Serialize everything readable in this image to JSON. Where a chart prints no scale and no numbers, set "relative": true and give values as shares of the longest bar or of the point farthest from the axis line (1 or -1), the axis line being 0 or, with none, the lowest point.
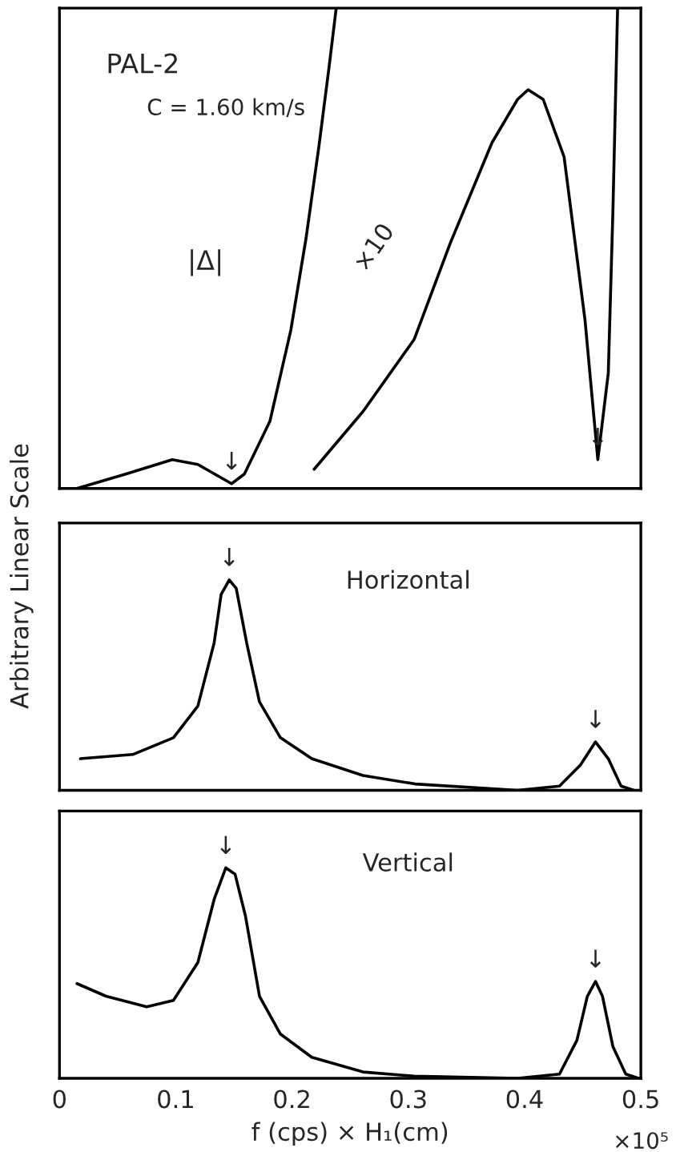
{
  "chart_data": [
    {
      "type": "line",
      "relative": true,
      "xlim": [
        0,
        0.5
      ],
      "xticks": [
        0,
        0.1,
        0.2,
        0.3,
        0.4,
        0.5
      ],
      "tick_labels": false,
      "grid": false,
      "legend": false,
      "x": [
        0.015,
        0.057,
        0.097,
        0.119,
        0.148,
        0.159,
        0.181,
        0.199,
        0.212,
        0.223,
        0.232,
        0.238
      ],
      "series": [
        {
          "color": "#000000",
          "values": [
            0.0,
            0.03,
            0.06,
            0.05,
            0.01,
            0.03,
            0.14,
            0.33,
            0.52,
            0.71,
            0.88,
            1.0
          ]
        },
        {
          "color": "#000000",
          "x": [
            0.219,
            0.261,
            0.305,
            0.336,
            0.372,
            0.394,
            0.403,
            0.416,
            0.434,
            0.452,
            0.463,
            0.472,
            0.476,
            0.48
          ],
          "values": [
            0.04,
            0.16,
            0.31,
            0.51,
            0.72,
            0.81,
            0.83,
            0.81,
            0.69,
            0.35,
            0.06,
            0.24,
            0.58,
            1.0
          ]
        }
      ],
      "annotations": [
        "PAL-2",
        "C = 1.60 km/s",
        "|Δ|",
        "×10",
        {
          "text": "↓",
          "x": 0.148,
          "y": 0.01
        },
        {
          "text": "↓",
          "x": 0.463,
          "y": 0.06
        }
      ]
    },
    {
      "type": "line",
      "relative": true,
      "xlim": [
        0,
        0.5
      ],
      "xticks": [
        0,
        0.1,
        0.2,
        0.3,
        0.4,
        0.5
      ],
      "tick_labels": false,
      "grid": false,
      "legend": false,
      "ylabel": "Arbitrary Linear Scale",
      "x": [
        0.018,
        0.063,
        0.098,
        0.119,
        0.133,
        0.139,
        0.146,
        0.152,
        0.161,
        0.172,
        0.19,
        0.217,
        0.261,
        0.306,
        0.394,
        0.43,
        0.448,
        0.461,
        0.472,
        0.483,
        0.494
      ],
      "series": [
        {
          "color": "#000000",
          "values": [
            0.15,
            0.17,
            0.25,
            0.4,
            0.7,
            0.93,
            1.0,
            0.96,
            0.7,
            0.42,
            0.25,
            0.15,
            0.07,
            0.03,
            0.0,
            0.02,
            0.12,
            0.23,
            0.15,
            0.02,
            0.0
          ]
        }
      ],
      "annotations": [
        "Horizontal",
        {
          "text": "↓",
          "x": 0.146,
          "y": 1.0
        },
        {
          "text": "↓",
          "x": 0.461,
          "y": 0.23
        }
      ]
    },
    {
      "type": "line",
      "relative": true,
      "xlim": [
        0,
        0.5
      ],
      "xticks": [
        0,
        0.1,
        0.2,
        0.3,
        0.4,
        0.5
      ],
      "tick_labels": "x",
      "grid": false,
      "legend": false,
      "xlabel": "f (cps) × H₁(cm)",
      "x": [
        0.015,
        0.04,
        0.075,
        0.098,
        0.119,
        0.133,
        0.143,
        0.151,
        0.16,
        0.172,
        0.19,
        0.217,
        0.261,
        0.305,
        0.394,
        0.43,
        0.445,
        0.454,
        0.461,
        0.467,
        0.476,
        0.487,
        0.498
      ],
      "series": [
        {
          "color": "#000000",
          "values": [
            0.45,
            0.39,
            0.34,
            0.37,
            0.55,
            0.85,
            1.0,
            0.97,
            0.77,
            0.39,
            0.21,
            0.1,
            0.03,
            0.01,
            0.0,
            0.02,
            0.18,
            0.39,
            0.46,
            0.39,
            0.15,
            0.02,
            0.0
          ]
        }
      ],
      "annotations": [
        "Vertical",
        "×10⁵",
        {
          "text": "↓",
          "x": 0.143,
          "y": 1.0
        },
        {
          "text": "↓",
          "x": 0.461,
          "y": 0.46
        }
      ]
    }
  ]
}
